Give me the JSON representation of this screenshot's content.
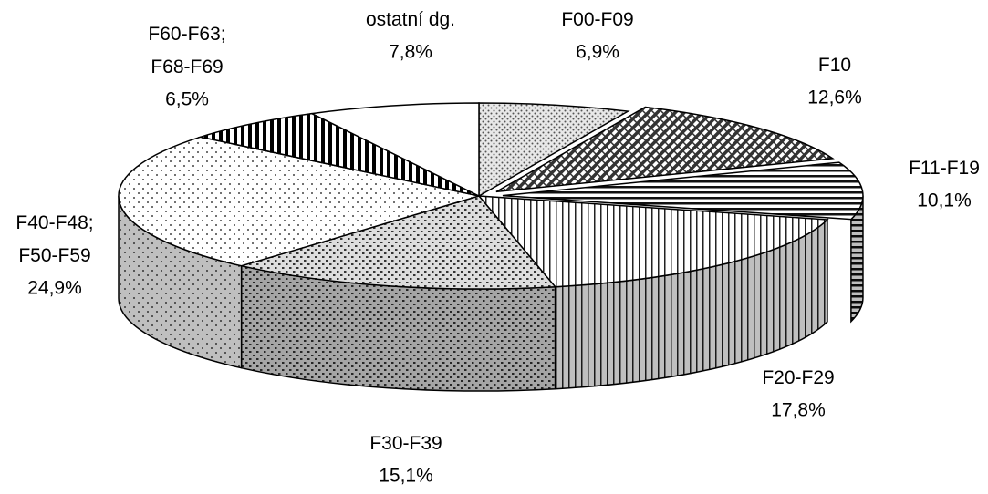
{
  "chart_data": {
    "type": "pie3d",
    "categories": [
      "F00-F09",
      "F10",
      "F11-F19",
      "F20-F29",
      "F30-F39",
      "F40-F48; F50-F59",
      "F60-F63; F68-F69",
      "ostatní dg."
    ],
    "values": [
      6.9,
      12.6,
      10.1,
      17.8,
      15.1,
      24.9,
      6.5,
      7.8
    ],
    "value_labels": [
      "6,9%",
      "12,6%",
      "10,1%",
      "17,8%",
      "15,1%",
      "24,9%",
      "6,5%",
      "7,8%"
    ],
    "exploded": [
      false,
      true,
      true,
      false,
      false,
      false,
      false,
      false
    ]
  }
}
